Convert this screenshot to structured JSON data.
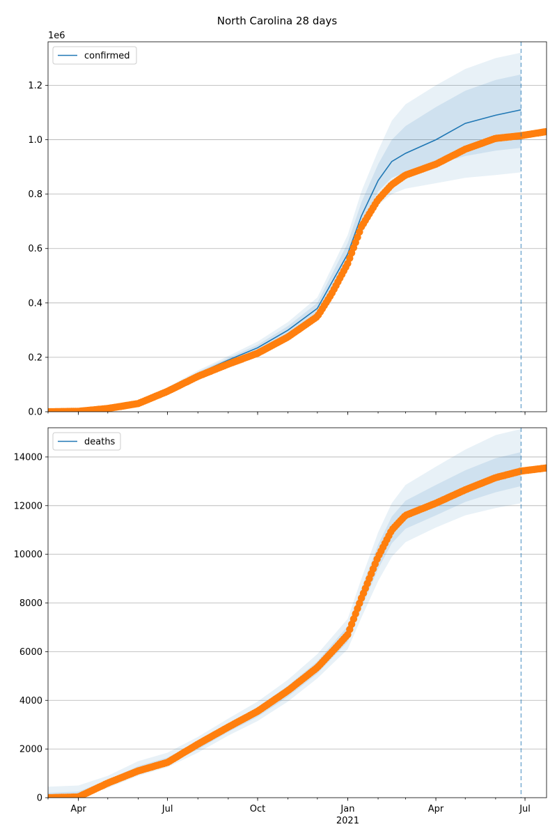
{
  "figure": {
    "title": "North Carolina 28 days"
  },
  "chart_data": [
    {
      "type": "line",
      "id": "confirmed",
      "scale_label": "1e6",
      "legend": {
        "label": "confirmed",
        "position": "upper-left"
      },
      "grid": "y",
      "xlim": [
        "2020-03-01",
        "2021-07-23"
      ],
      "ylim": [
        0,
        1360000
      ],
      "yticks": [
        {
          "value": 0,
          "label": "0.0"
        },
        {
          "value": 200000,
          "label": "0.2"
        },
        {
          "value": 400000,
          "label": "0.4"
        },
        {
          "value": 600000,
          "label": "0.6"
        },
        {
          "value": 800000,
          "label": "0.8"
        },
        {
          "value": 1000000,
          "label": "1.0"
        },
        {
          "value": 1200000,
          "label": "1.2"
        }
      ],
      "forecast_start": "2021-06-27",
      "model": {
        "name": "confirmed",
        "x": [
          "2020-03-01",
          "2020-04-01",
          "2020-05-01",
          "2020-06-01",
          "2020-07-01",
          "2020-08-01",
          "2020-09-01",
          "2020-10-01",
          "2020-11-01",
          "2020-12-01",
          "2021-01-01",
          "2021-01-15",
          "2021-02-01",
          "2021-02-15",
          "2021-03-01",
          "2021-04-01",
          "2021-05-01",
          "2021-06-01",
          "2021-06-27"
        ],
        "median": [
          0,
          2000,
          15000,
          35000,
          80000,
          140000,
          190000,
          235000,
          300000,
          380000,
          580000,
          720000,
          850000,
          920000,
          950000,
          1000000,
          1060000,
          1090000,
          1110000
        ],
        "bands": [
          {
            "lower": [
              0,
              1500,
              12000,
              30000,
              72000,
              128000,
              175000,
              215000,
              270000,
              340000,
              520000,
              650000,
              760000,
              800000,
              820000,
              840000,
              860000,
              870000,
              880000
            ],
            "upper": [
              0,
              2500,
              18000,
              42000,
              90000,
              152000,
              205000,
              258000,
              330000,
              420000,
              650000,
              810000,
              960000,
              1070000,
              1130000,
              1200000,
              1260000,
              1300000,
              1320000
            ]
          },
          {
            "lower": [
              0,
              1800,
              14000,
              33000,
              76000,
              134000,
              182000,
              225000,
              285000,
              360000,
              550000,
              690000,
              810000,
              860000,
              880000,
              910000,
              940000,
              960000,
              970000
            ],
            "upper": [
              0,
              2200,
              16500,
              38000,
              85000,
              146000,
              198000,
              246000,
              315000,
              400000,
              620000,
              770000,
              910000,
              1000000,
              1050000,
              1120000,
              1180000,
              1220000,
              1240000
            ]
          }
        ]
      },
      "observed": {
        "x": [
          "2020-03-01",
          "2020-04-01",
          "2020-05-01",
          "2020-06-01",
          "2020-07-01",
          "2020-08-01",
          "2020-09-01",
          "2020-10-01",
          "2020-11-01",
          "2020-12-01",
          "2020-12-15",
          "2021-01-01",
          "2021-01-15",
          "2021-02-01",
          "2021-02-15",
          "2021-03-01",
          "2021-04-01",
          "2021-05-01",
          "2021-06-01",
          "2021-06-27",
          "2021-07-23"
        ],
        "y": [
          0,
          1500,
          12000,
          30000,
          75000,
          130000,
          175000,
          215000,
          275000,
          350000,
          430000,
          545000,
          680000,
          780000,
          835000,
          870000,
          910000,
          965000,
          1005000,
          1015000,
          1030000
        ]
      }
    },
    {
      "type": "line",
      "id": "deaths",
      "legend": {
        "label": "deaths",
        "position": "upper-left"
      },
      "grid": "y",
      "xlim": [
        "2020-03-01",
        "2021-07-23"
      ],
      "ylim": [
        0,
        15200
      ],
      "yticks": [
        {
          "value": 0,
          "label": "0"
        },
        {
          "value": 2000,
          "label": "2000"
        },
        {
          "value": 4000,
          "label": "4000"
        },
        {
          "value": 6000,
          "label": "6000"
        },
        {
          "value": 8000,
          "label": "8000"
        },
        {
          "value": 10000,
          "label": "10000"
        },
        {
          "value": 12000,
          "label": "12000"
        },
        {
          "value": 14000,
          "label": "14000"
        }
      ],
      "xticks": [
        {
          "date": "2020-04-01",
          "label": "Apr"
        },
        {
          "date": "2020-07-01",
          "label": "Jul"
        },
        {
          "date": "2020-10-01",
          "label": "Oct"
        },
        {
          "date": "2021-01-01",
          "label": "Jan",
          "sublabel": "2021"
        },
        {
          "date": "2021-04-01",
          "label": "Apr"
        },
        {
          "date": "2021-07-01",
          "label": "Jul"
        }
      ],
      "forecast_start": "2021-06-27",
      "model": {
        "name": "deaths",
        "x": [
          "2020-03-01",
          "2020-04-01",
          "2020-05-01",
          "2020-06-01",
          "2020-07-01",
          "2020-08-01",
          "2020-09-01",
          "2020-10-01",
          "2020-11-01",
          "2020-12-01",
          "2021-01-01",
          "2021-01-15",
          "2021-02-01",
          "2021-02-15",
          "2021-03-01",
          "2021-04-01",
          "2021-05-01",
          "2021-06-01",
          "2021-06-27"
        ],
        "median": [
          0,
          60,
          550,
          1100,
          1450,
          2100,
          2850,
          3500,
          4350,
          5300,
          6700,
          8200,
          9900,
          11000,
          11600,
          12100,
          12700,
          13200,
          13450
        ],
        "bands": [
          {
            "lower": [
              0,
              0,
              400,
              900,
              1250,
              1850,
              2550,
              3150,
              3950,
              4900,
              6100,
              7400,
              8900,
              9900,
              10500,
              11100,
              11600,
              11900,
              12100
            ],
            "upper": [
              450,
              500,
              900,
              1500,
              1850,
              2500,
              3250,
              3950,
              4850,
              5900,
              7350,
              9000,
              10900,
              12100,
              12850,
              13600,
              14300,
              14900,
              15150
            ]
          },
          {
            "lower": [
              0,
              20,
              480,
              1000,
              1350,
              1980,
              2700,
              3320,
              4150,
              5100,
              6400,
              7800,
              9400,
              10450,
              11050,
              11600,
              12150,
              12550,
              12800
            ],
            "upper": [
              200,
              250,
              720,
              1300,
              1650,
              2300,
              3050,
              3720,
              4600,
              5600,
              7050,
              8600,
              10400,
              11550,
              12200,
              12850,
              13450,
              13950,
              14200
            ]
          }
        ]
      },
      "observed": {
        "x": [
          "2020-03-01",
          "2020-04-01",
          "2020-05-01",
          "2020-06-01",
          "2020-07-01",
          "2020-08-01",
          "2020-09-01",
          "2020-10-01",
          "2020-11-01",
          "2020-12-01",
          "2020-12-15",
          "2021-01-01",
          "2021-01-15",
          "2021-02-01",
          "2021-02-15",
          "2021-03-01",
          "2021-04-01",
          "2021-05-01",
          "2021-06-01",
          "2021-06-27",
          "2021-07-23"
        ],
        "y": [
          0,
          30,
          600,
          1100,
          1450,
          2200,
          2900,
          3550,
          4400,
          5350,
          5950,
          6700,
          8200,
          9900,
          11000,
          11600,
          12100,
          12650,
          13150,
          13420,
          13550
        ]
      }
    }
  ]
}
